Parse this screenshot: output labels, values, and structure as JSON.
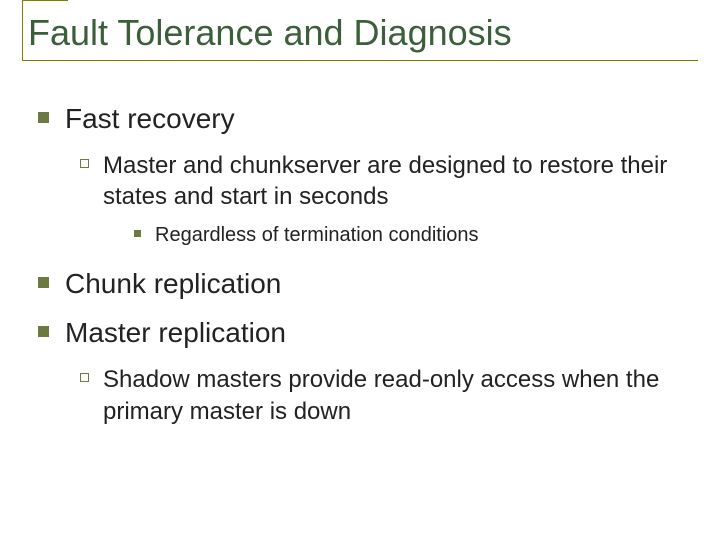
{
  "colors": {
    "title_color": "#3a5f3a",
    "bullet_color": "#6b7a40",
    "rule_color": "#808000",
    "text_color": "#222222",
    "background": "#ffffff"
  },
  "typography": {
    "title_fontsize": 36,
    "l1_fontsize": 28,
    "l2_fontsize": 24,
    "l3_fontsize": 20,
    "font_family": "Arial"
  },
  "slide": {
    "title": "Fault Tolerance and Diagnosis",
    "items": {
      "fast_recovery": {
        "label": "Fast recovery",
        "sub1": "Master and chunkserver are designed to restore their states and start in seconds",
        "sub1_sub": "Regardless of termination conditions"
      },
      "chunk_replication": {
        "label": "Chunk replication"
      },
      "master_replication": {
        "label": "Master replication",
        "sub1": "Shadow masters provide read-only access when the primary master is down"
      }
    }
  }
}
